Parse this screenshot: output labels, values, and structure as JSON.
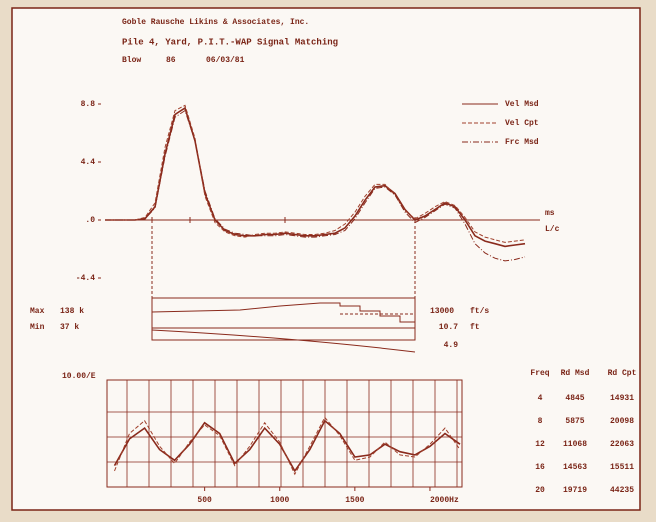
{
  "header": {
    "company": "Goble Rausche Likins & Associates, Inc.",
    "title": "Pile 4, Yard, P.I.T.-WAP Signal Matching",
    "blow_label": "Blow",
    "blow_no": "86",
    "date": "06/03/81"
  },
  "chart_data": [
    {
      "type": "line",
      "x": [
        0,
        1,
        2,
        3,
        4,
        5,
        6,
        7,
        8,
        9,
        10,
        11,
        12,
        13,
        14,
        15,
        16,
        17,
        18,
        19,
        20,
        21,
        22,
        23,
        24,
        25,
        26,
        27,
        28,
        29,
        30,
        31,
        32,
        33,
        34,
        35,
        36,
        37,
        38,
        39,
        40,
        41,
        42
      ],
      "xlim": [
        0,
        42
      ],
      "ylim": [
        -4.4,
        8.8
      ],
      "yticks": [
        -4.4,
        {
          "value": 0,
          "label": ".0"
        },
        4.4,
        8.8
      ],
      "y_units": [
        "ms",
        "L/c"
      ],
      "series": [
        {
          "name": "Vel Msd",
          "color": "#8a2a1c",
          "style": "solid",
          "values": [
            0,
            0,
            0,
            0,
            0.1,
            1,
            5,
            8,
            8.5,
            6,
            2,
            0,
            -0.8,
            -1.1,
            -1.2,
            -1.2,
            -1.1,
            -1.1,
            -1,
            -1.1,
            -1.2,
            -1.2,
            -1.1,
            -1,
            -0.6,
            0.3,
            1.5,
            2.5,
            2.6,
            2,
            0.8,
            0,
            0.3,
            0.8,
            1.3,
            1,
            0,
            -1.2,
            -1.6,
            -1.8,
            -2,
            -1.9,
            -1.8
          ]
        },
        {
          "name": "Vel Cpt",
          "color": "#a0402c",
          "style": "dashed",
          "values": [
            0,
            0,
            0,
            0,
            0.2,
            1.3,
            5.5,
            8.3,
            8.7,
            6.2,
            1.8,
            -0.2,
            -0.9,
            -1.2,
            -1.3,
            -1.1,
            -1,
            -1,
            -0.9,
            -1,
            -1.1,
            -1.1,
            -1,
            -0.8,
            -0.3,
            0.6,
            1.8,
            2.7,
            2.7,
            1.9,
            0.7,
            0.1,
            0.5,
            1,
            1.4,
            1.1,
            0.2,
            -0.9,
            -1.3,
            -1.5,
            -1.7,
            -1.6,
            -1.5
          ]
        },
        {
          "name": "Frc Msd",
          "color": "#8a2a1c",
          "style": "dashdot",
          "values": [
            0,
            0,
            0,
            0,
            0.1,
            0.9,
            4.8,
            7.8,
            8.3,
            6,
            2.2,
            0.1,
            -0.7,
            -1,
            -1.1,
            -1.2,
            -1.2,
            -1.2,
            -1.1,
            -1.2,
            -1.3,
            -1.3,
            -1.2,
            -1.1,
            -0.8,
            0.1,
            1.3,
            2.4,
            2.5,
            1.9,
            0.6,
            -0.2,
            0.2,
            0.7,
            1.2,
            0.9,
            -0.3,
            -1.8,
            -2.5,
            -2.9,
            -3.1,
            -3,
            -2.8
          ]
        }
      ]
    },
    {
      "type": "line",
      "scale_label": "10.00/E",
      "x": [
        -100,
        0,
        100,
        200,
        300,
        400,
        500,
        600,
        700,
        800,
        900,
        1000,
        1100,
        1200,
        1300,
        1400,
        1500,
        1600,
        1700,
        1800,
        1900,
        2000,
        2100,
        2200
      ],
      "xlim": [
        -150,
        2200
      ],
      "ylim": [
        0,
        100
      ],
      "xticks": [
        500,
        1000,
        1500,
        {
          "value": 2000,
          "label": "2000Hz"
        }
      ],
      "series": [
        {
          "color": "#8a2a1c",
          "style": "solid",
          "values": [
            20,
            45,
            55,
            35,
            25,
            40,
            60,
            50,
            22,
            35,
            55,
            40,
            15,
            35,
            62,
            50,
            28,
            30,
            40,
            33,
            30,
            38,
            50,
            40
          ]
        },
        {
          "color": "#a0402c",
          "style": "dashed",
          "values": [
            15,
            50,
            62,
            38,
            22,
            42,
            58,
            48,
            20,
            38,
            60,
            42,
            12,
            38,
            65,
            48,
            25,
            28,
            42,
            30,
            28,
            40,
            55,
            35
          ]
        }
      ]
    }
  ],
  "results": {
    "max_label": "Max",
    "max_value": "138 k",
    "min_label": "Min",
    "min_value": "37 k",
    "wave_speed": "13000",
    "wave_speed_unit": "ft/s",
    "length": "10.7",
    "length_unit": "ft",
    "extra": "4.9"
  },
  "table": {
    "headers": [
      "Freq",
      "Rd Msd",
      "Rd Cpt"
    ],
    "rows": [
      [
        4,
        4845,
        14931
      ],
      [
        8,
        5875,
        20098
      ],
      [
        12,
        11068,
        22063
      ],
      [
        16,
        14563,
        15511
      ],
      [
        20,
        19719,
        44235
      ]
    ]
  }
}
